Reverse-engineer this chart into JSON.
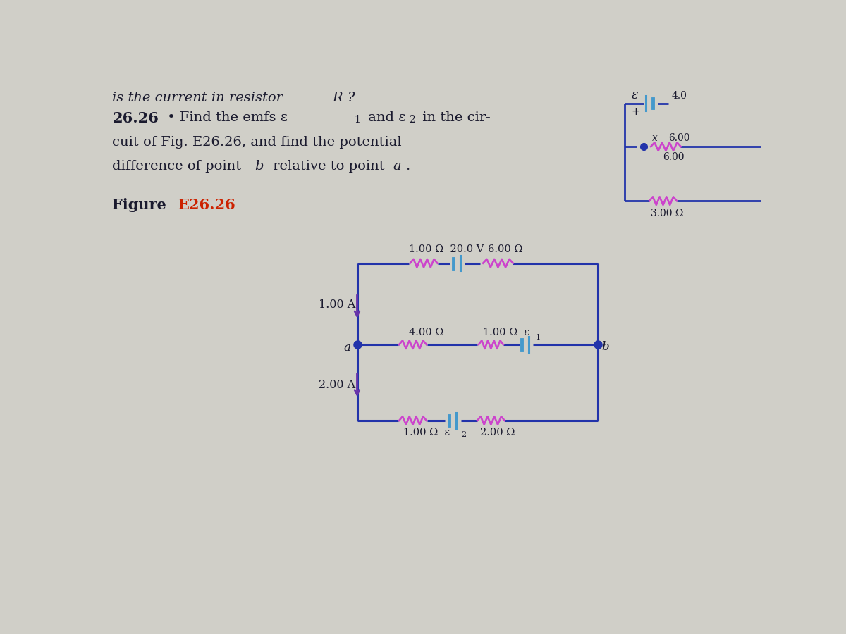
{
  "bg_color": "#d0cfc8",
  "text_color": "#1a1a2e",
  "figure_label_color": "#cc2200",
  "circuit_color": "#2233aa",
  "resistor_color": "#cc44cc",
  "battery_color": "#4499cc",
  "current_arrow_color": "#6633aa",
  "dot_color": "#2233aa",
  "line1": "is the current in resistor ",
  "line1b": "R",
  "line1c": "?",
  "line2_num": "26.26",
  "line2_rest": " • Find the emfs ε",
  "line2_sub1": "1",
  "line2_and": " and ε",
  "line2_sub2": "2",
  "line2_end": " in the cir-",
  "line3": "cuit of Fig. E26.26, and find the potential",
  "line4": "difference of point ",
  "line4b": "b",
  "line4c": " relative to point ",
  "line4d": "a",
  "line4e": ".",
  "fig_prefix": "Figure ",
  "fig_label": "E26.26",
  "top_res_label": "1.00 Ω  20.0 V",
  "top_right_res_label": "6.00 Ω",
  "curr1_label": "1.00 A",
  "mid_res_label": "4.00 Ω",
  "mid_right_label": "1.00 Ω  ε",
  "mid_right_sub": "1",
  "point_a": "a",
  "point_b": "b",
  "curr2_label": "2.00 A",
  "bot_res_label": "1.00 Ω  ε",
  "bot_res_sub": "2",
  "bot_right_label": "2.00 Ω",
  "corner_eps": "ε",
  "corner_4": "4.0",
  "corner_x": "x",
  "corner_6a": "6.00",
  "corner_6b": "6.00",
  "corner_3": "3.00 Ω"
}
